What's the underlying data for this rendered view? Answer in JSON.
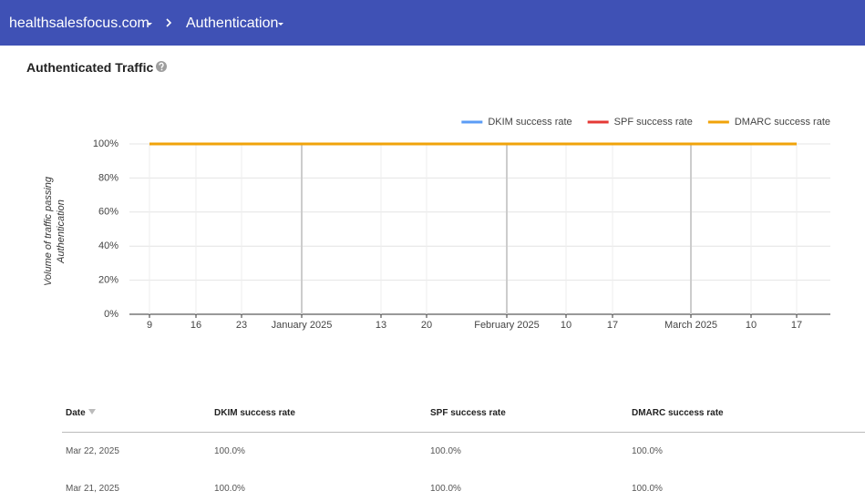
{
  "header": {
    "breadcrumbs": [
      "healthsalesfocus.com",
      "Authentication"
    ]
  },
  "chart_data": {
    "type": "line",
    "title": "Authenticated Traffic",
    "ylabel": "Volume of traffic passing Authentication",
    "categories": [
      "9",
      "16",
      "23",
      "January 2025",
      "13",
      "20",
      "February 2025",
      "10",
      "17",
      "March 2025",
      "10",
      "17"
    ],
    "series": [
      {
        "name": "DKIM success rate",
        "color": "#5b9cf6",
        "values": [
          100,
          100,
          100,
          100,
          100,
          100,
          100,
          100,
          100,
          100,
          100,
          100
        ]
      },
      {
        "name": "SPF success rate",
        "color": "#e53935",
        "values": [
          100,
          100,
          100,
          100,
          100,
          100,
          100,
          100,
          100,
          100,
          100,
          100
        ]
      },
      {
        "name": "DMARC success rate",
        "color": "#f0a30a",
        "values": [
          100,
          100,
          100,
          100,
          100,
          100,
          100,
          100,
          100,
          100,
          100,
          100
        ]
      }
    ],
    "ylim": [
      0,
      100
    ],
    "yticks": [
      {
        "value": 0,
        "label": "0%"
      },
      {
        "value": 20,
        "label": "20%"
      },
      {
        "value": 40,
        "label": "40%"
      },
      {
        "value": 60,
        "label": "60%"
      },
      {
        "value": 80,
        "label": "80%"
      },
      {
        "value": 100,
        "label": "100%"
      }
    ],
    "grid": true,
    "legend": "top-right"
  },
  "table": {
    "columns": [
      "Date",
      "DKIM success rate",
      "SPF success rate",
      "DMARC success rate"
    ],
    "rows": [
      [
        "Mar 22, 2025",
        "100.0%",
        "100.0%",
        "100.0%"
      ],
      [
        "Mar 21, 2025",
        "100.0%",
        "100.0%",
        "100.0%"
      ]
    ]
  }
}
